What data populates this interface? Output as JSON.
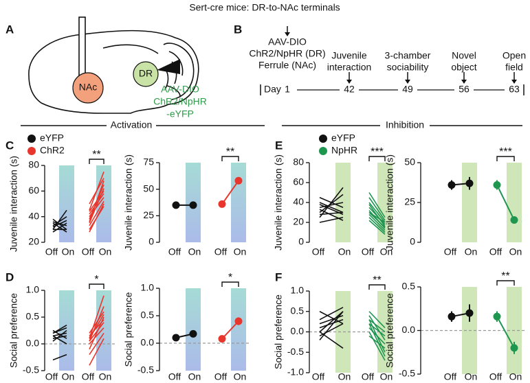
{
  "title": "Sert-cre  mice: DR-to-NAc terminals",
  "panel_a": {
    "label": "A",
    "regions": [
      "NAc",
      "DR"
    ],
    "virus": [
      "AAV-DIO",
      "ChR2/NpHR",
      "-eYFP"
    ]
  },
  "panel_b": {
    "label": "B",
    "day_label": "Day",
    "events": [
      {
        "lines": [
          "AAV-DIO",
          "ChR2/NpHR (DR)",
          "Ferrule (NAc)"
        ],
        "day": 1
      },
      {
        "lines": [
          "Juvenile",
          "interaction"
        ],
        "day": 42
      },
      {
        "lines": [
          "3-chamber",
          "sociability"
        ],
        "day": 49
      },
      {
        "lines": [
          "Novel",
          "object"
        ],
        "day": 56
      },
      {
        "lines": [
          "Open",
          "field"
        ],
        "day": 63
      }
    ]
  },
  "sections": [
    "Activation",
    "Inhibition"
  ],
  "chart_data": [
    {
      "type": "paired",
      "panel": "C",
      "ylabel": "Juvenile interaction (s)",
      "categories": [
        "Off",
        "On"
      ],
      "ylim": [
        20,
        80
      ],
      "yticks": [
        20,
        40,
        60,
        80
      ],
      "shade_colors": [
        "#a6dbd5",
        "#abbbe9"
      ],
      "legend": "upper left",
      "series": [
        {
          "name": "eYFP",
          "color": "#111111",
          "values": [
            [
              30,
              45
            ],
            [
              35,
              28
            ],
            [
              38,
              30
            ],
            [
              32,
              37
            ],
            [
              28,
              35
            ],
            [
              36,
              33
            ],
            [
              33,
              40
            ],
            [
              30,
              30
            ]
          ]
        },
        {
          "name": "ChR2",
          "color": "#e8362c",
          "significance": "**",
          "values": [
            [
              28,
              50
            ],
            [
              35,
              62
            ],
            [
              40,
              55
            ],
            [
              45,
              75
            ],
            [
              38,
              65
            ],
            [
              42,
              58
            ],
            [
              30,
              48
            ],
            [
              50,
              70
            ],
            [
              36,
              68
            ],
            [
              44,
              60
            ],
            [
              33,
              52
            ]
          ]
        }
      ]
    },
    {
      "type": "paired-mean",
      "ylabel": "Juvenile interaction (s)",
      "categories": [
        "Off",
        "On"
      ],
      "ylim": [
        0,
        75
      ],
      "yticks": [
        0,
        25,
        50,
        75
      ],
      "shade_colors": [
        "#a6dbd5",
        "#abbbe9"
      ],
      "series": [
        {
          "color": "#111111",
          "values": [
            35,
            35
          ],
          "errors": [
            2,
            2
          ]
        },
        {
          "color": "#e8362c",
          "significance": "**",
          "values": [
            36,
            58
          ],
          "errors": [
            2,
            3
          ]
        }
      ]
    },
    {
      "type": "paired",
      "panel": "D",
      "ylabel": "Social preference",
      "categories": [
        "Off",
        "On"
      ],
      "ylim": [
        -0.5,
        1.0
      ],
      "yticks": [
        -0.5,
        {
          "value": 0,
          "label": "0.0"
        },
        0.5,
        {
          "value": 1,
          "label": "1.0"
        }
      ],
      "shade_colors": [
        "#a6dbd5",
        "#abbbe9"
      ],
      "zero_line": true,
      "series": [
        {
          "color": "#111111",
          "values": [
            [
              0.15,
              0.2
            ],
            [
              0.2,
              0.3
            ],
            [
              0.1,
              0.15
            ],
            [
              0.25,
              0.1
            ],
            [
              0.05,
              0.25
            ],
            [
              -0.3,
              -0.2
            ],
            [
              0.15,
              0.0
            ],
            [
              0.2,
              0.35
            ]
          ]
        },
        {
          "color": "#e8362c",
          "significance": "*",
          "values": [
            [
              0.1,
              0.9
            ],
            [
              0.05,
              0.7
            ],
            [
              0.2,
              0.6
            ],
            [
              -0.1,
              0.5
            ],
            [
              0.0,
              0.3
            ],
            [
              0.15,
              0.45
            ],
            [
              -0.2,
              0.2
            ],
            [
              0.1,
              0.55
            ],
            [
              -0.4,
              0.1
            ],
            [
              0.05,
              0.4
            ]
          ]
        }
      ]
    },
    {
      "type": "paired-mean",
      "ylabel": "Social preference",
      "categories": [
        "Off",
        "On"
      ],
      "ylim": [
        -0.5,
        1.0
      ],
      "yticks": [
        -0.5,
        {
          "value": 0,
          "label": "0.0"
        },
        0.5,
        {
          "value": 1,
          "label": "1.0"
        }
      ],
      "shade_colors": [
        "#a6dbd5",
        "#abbbe9"
      ],
      "zero_line": true,
      "series": [
        {
          "color": "#111111",
          "values": [
            0.1,
            0.17
          ],
          "errors": [
            0.05,
            0.05
          ]
        },
        {
          "color": "#e8362c",
          "significance": "*",
          "values": [
            0.08,
            0.4
          ],
          "errors": [
            0.05,
            0.07
          ]
        }
      ]
    },
    {
      "type": "paired",
      "panel": "E",
      "ylabel": "Juvenile interaction (s)",
      "categories": [
        "Off",
        "On"
      ],
      "ylim": [
        0,
        80
      ],
      "yticks": [
        0,
        20,
        40,
        60,
        80
      ],
      "shade_colors": [
        "#cfe6b8",
        "#cfe6b8"
      ],
      "legend": "upper left",
      "series": [
        {
          "name": "eYFP",
          "color": "#111111",
          "values": [
            [
              25,
              55
            ],
            [
              30,
              48
            ],
            [
              35,
              40
            ],
            [
              20,
              25
            ],
            [
              40,
              30
            ],
            [
              45,
              35
            ],
            [
              28,
              30
            ],
            [
              38,
              28
            ],
            [
              33,
              22
            ]
          ]
        },
        {
          "name": "NpHR",
          "color": "#1e9650",
          "significance": "***",
          "values": [
            [
              40,
              20
            ],
            [
              35,
              18
            ],
            [
              30,
              15
            ],
            [
              45,
              22
            ],
            [
              28,
              12
            ],
            [
              25,
              10
            ],
            [
              32,
              14
            ],
            [
              38,
              16
            ],
            [
              50,
              25
            ],
            [
              22,
              8
            ],
            [
              30,
              20
            ]
          ]
        }
      ]
    },
    {
      "type": "paired-mean",
      "ylabel": "Juvenile interaction (s)",
      "categories": [
        "Off",
        "On"
      ],
      "ylim": [
        0,
        50
      ],
      "yticks": [
        0,
        25,
        50
      ],
      "shade_colors": [
        "#cfe6b8",
        "#cfe6b8"
      ],
      "series": [
        {
          "color": "#111111",
          "values": [
            36,
            37
          ],
          "errors": [
            3,
            4
          ]
        },
        {
          "color": "#1e9650",
          "significance": "***",
          "values": [
            36,
            14
          ],
          "errors": [
            3,
            1
          ]
        }
      ]
    },
    {
      "type": "paired",
      "panel": "F",
      "ylabel": "Social preference",
      "categories": [
        "Off",
        "On"
      ],
      "ylim": [
        -1.0,
        1.0
      ],
      "yticks": [
        {
          "value": -1,
          "label": "-1.0"
        },
        -0.5,
        {
          "value": 0,
          "label": "0.0"
        },
        0.5,
        {
          "value": 1,
          "label": "1.0"
        }
      ],
      "shade_colors": [
        "#cfe6b8",
        "#cfe6b8"
      ],
      "zero_line": true,
      "series": [
        {
          "color": "#111111",
          "values": [
            [
              0.0,
              0.5
            ],
            [
              0.2,
              0.4
            ],
            [
              0.1,
              0.3
            ],
            [
              -0.1,
              0.2
            ],
            [
              0.3,
              0.6
            ],
            [
              0.5,
              0.2
            ],
            [
              -0.2,
              0.5
            ],
            [
              0.0,
              -0.4
            ]
          ]
        },
        {
          "color": "#1e9650",
          "significance": "**",
          "values": [
            [
              0.4,
              -0.2
            ],
            [
              0.3,
              -0.5
            ],
            [
              0.2,
              -0.1
            ],
            [
              0.0,
              -0.7
            ],
            [
              0.5,
              0.1
            ],
            [
              0.1,
              -0.3
            ],
            [
              -0.1,
              -0.4
            ],
            [
              0.3,
              0.0
            ],
            [
              0.2,
              -0.6
            ]
          ]
        }
      ]
    },
    {
      "type": "paired-mean",
      "ylabel": "Social preference",
      "categories": [
        "Off",
        "On"
      ],
      "ylim": [
        -0.5,
        0.5
      ],
      "yticks": [
        -0.5,
        {
          "value": 0,
          "label": "0.0"
        },
        0.5
      ],
      "shade_colors": [
        "#cfe6b8",
        "#cfe6b8"
      ],
      "zero_line": true,
      "series": [
        {
          "color": "#111111",
          "values": [
            0.16,
            0.2
          ],
          "errors": [
            0.06,
            0.1
          ]
        },
        {
          "color": "#1e9650",
          "significance": "**",
          "values": [
            0.16,
            -0.2
          ],
          "errors": [
            0.06,
            0.07
          ]
        }
      ]
    }
  ]
}
